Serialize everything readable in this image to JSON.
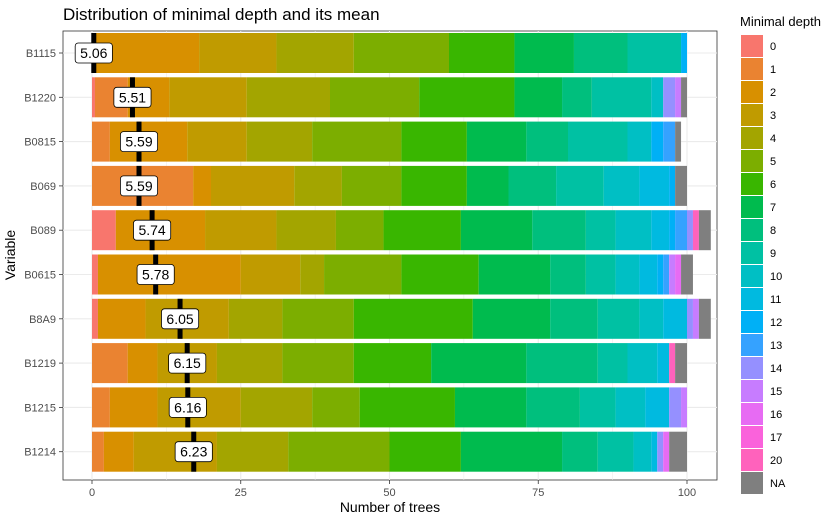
{
  "chart_data": {
    "type": "bar",
    "title": "Distribution of minimal depth and its mean",
    "xlabel": "Number of trees",
    "ylabel": "Variable",
    "xlim": [
      0,
      100
    ],
    "x_ticks": [
      0,
      25,
      50,
      75,
      100
    ],
    "grid": true,
    "legend_title": "Minimal depth",
    "legend_position": "right",
    "depth_levels": [
      "0",
      "1",
      "2",
      "3",
      "4",
      "5",
      "6",
      "7",
      "8",
      "9",
      "10",
      "11",
      "12",
      "13",
      "14",
      "15",
      "16",
      "17",
      "20",
      "NA"
    ],
    "depth_colors": [
      "#F8766D",
      "#EA8331",
      "#D89000",
      "#C09B00",
      "#A3A500",
      "#7CAE00",
      "#39B600",
      "#00BB4E",
      "#00BF7D",
      "#00C1A3",
      "#00BFC4",
      "#00BAE0",
      "#00B0F6",
      "#35A2FF",
      "#9590FF",
      "#C77CFF",
      "#E76BF3",
      "#FA62DB",
      "#FF62BC",
      "#7F7F7F"
    ],
    "categories": [
      "B1115",
      "B1220",
      "B0815",
      "B069",
      "B089",
      "B0615",
      "B8A9",
      "B1219",
      "B1215",
      "B1214"
    ],
    "mean_labels": [
      "5.06",
      "5.51",
      "5.59",
      "5.59",
      "5.74",
      "5.78",
      "6.05",
      "6.15",
      "6.16",
      "6.23"
    ],
    "mean_marker_x": [
      0.3,
      6.8,
      7.9,
      7.9,
      10.1,
      10.7,
      14.8,
      16.0,
      16.1,
      17.1
    ],
    "series": [
      {
        "name": "0",
        "values": [
          0,
          0.5,
          0,
          0,
          4,
          1,
          1,
          0,
          0,
          0
        ]
      },
      {
        "name": "1",
        "values": [
          0,
          5.5,
          3,
          17,
          0,
          0,
          0,
          6,
          3,
          2
        ]
      },
      {
        "name": "2",
        "values": [
          18,
          7,
          13,
          3,
          15,
          24,
          8,
          5,
          8,
          5
        ]
      },
      {
        "name": "3",
        "values": [
          13,
          13,
          10,
          14,
          12,
          10,
          14,
          10,
          14,
          14
        ]
      },
      {
        "name": "4",
        "values": [
          13,
          14,
          11,
          8,
          10,
          4,
          9,
          11,
          12,
          12
        ]
      },
      {
        "name": "5",
        "values": [
          16,
          15,
          15,
          10,
          8,
          13,
          12,
          12,
          8,
          17
        ]
      },
      {
        "name": "6",
        "values": [
          11,
          16,
          11,
          11,
          13,
          13,
          20,
          13,
          16,
          12
        ]
      },
      {
        "name": "7",
        "values": [
          10,
          8,
          10,
          7,
          12,
          12,
          13,
          16,
          12,
          17
        ]
      },
      {
        "name": "8",
        "values": [
          9,
          5,
          7,
          8,
          9,
          6,
          8,
          12,
          9,
          6
        ]
      },
      {
        "name": "9",
        "values": [
          9,
          10,
          10,
          8,
          5,
          5,
          7,
          5,
          6,
          6
        ]
      },
      {
        "name": "10",
        "values": [
          0,
          2,
          4,
          6,
          6,
          4,
          4,
          5,
          5,
          3
        ]
      },
      {
        "name": "11",
        "values": [
          0,
          0,
          0,
          5,
          3,
          3,
          4,
          2,
          4,
          1
        ]
      },
      {
        "name": "12",
        "values": [
          1,
          0,
          2,
          1,
          1,
          1,
          0,
          0,
          0,
          0
        ]
      },
      {
        "name": "13",
        "values": [
          0,
          0,
          2,
          0,
          2,
          1,
          0,
          0,
          0,
          0
        ]
      },
      {
        "name": "14",
        "values": [
          0,
          2,
          0,
          0,
          1,
          0,
          1,
          0,
          2,
          1
        ]
      },
      {
        "name": "15",
        "values": [
          0,
          1,
          0,
          0,
          0,
          1,
          1,
          0,
          1,
          0
        ]
      },
      {
        "name": "16",
        "values": [
          0,
          0,
          0,
          0,
          0,
          1,
          0,
          0,
          0,
          1
        ]
      },
      {
        "name": "17",
        "values": [
          0,
          0,
          0,
          0,
          0,
          0,
          0,
          0,
          0,
          0
        ]
      },
      {
        "name": "20",
        "values": [
          0,
          0,
          0,
          0,
          1,
          0,
          0,
          1,
          0,
          0
        ]
      },
      {
        "name": "NA",
        "values": [
          0,
          1,
          1,
          2,
          2,
          2,
          2,
          2,
          0,
          3
        ]
      }
    ]
  }
}
